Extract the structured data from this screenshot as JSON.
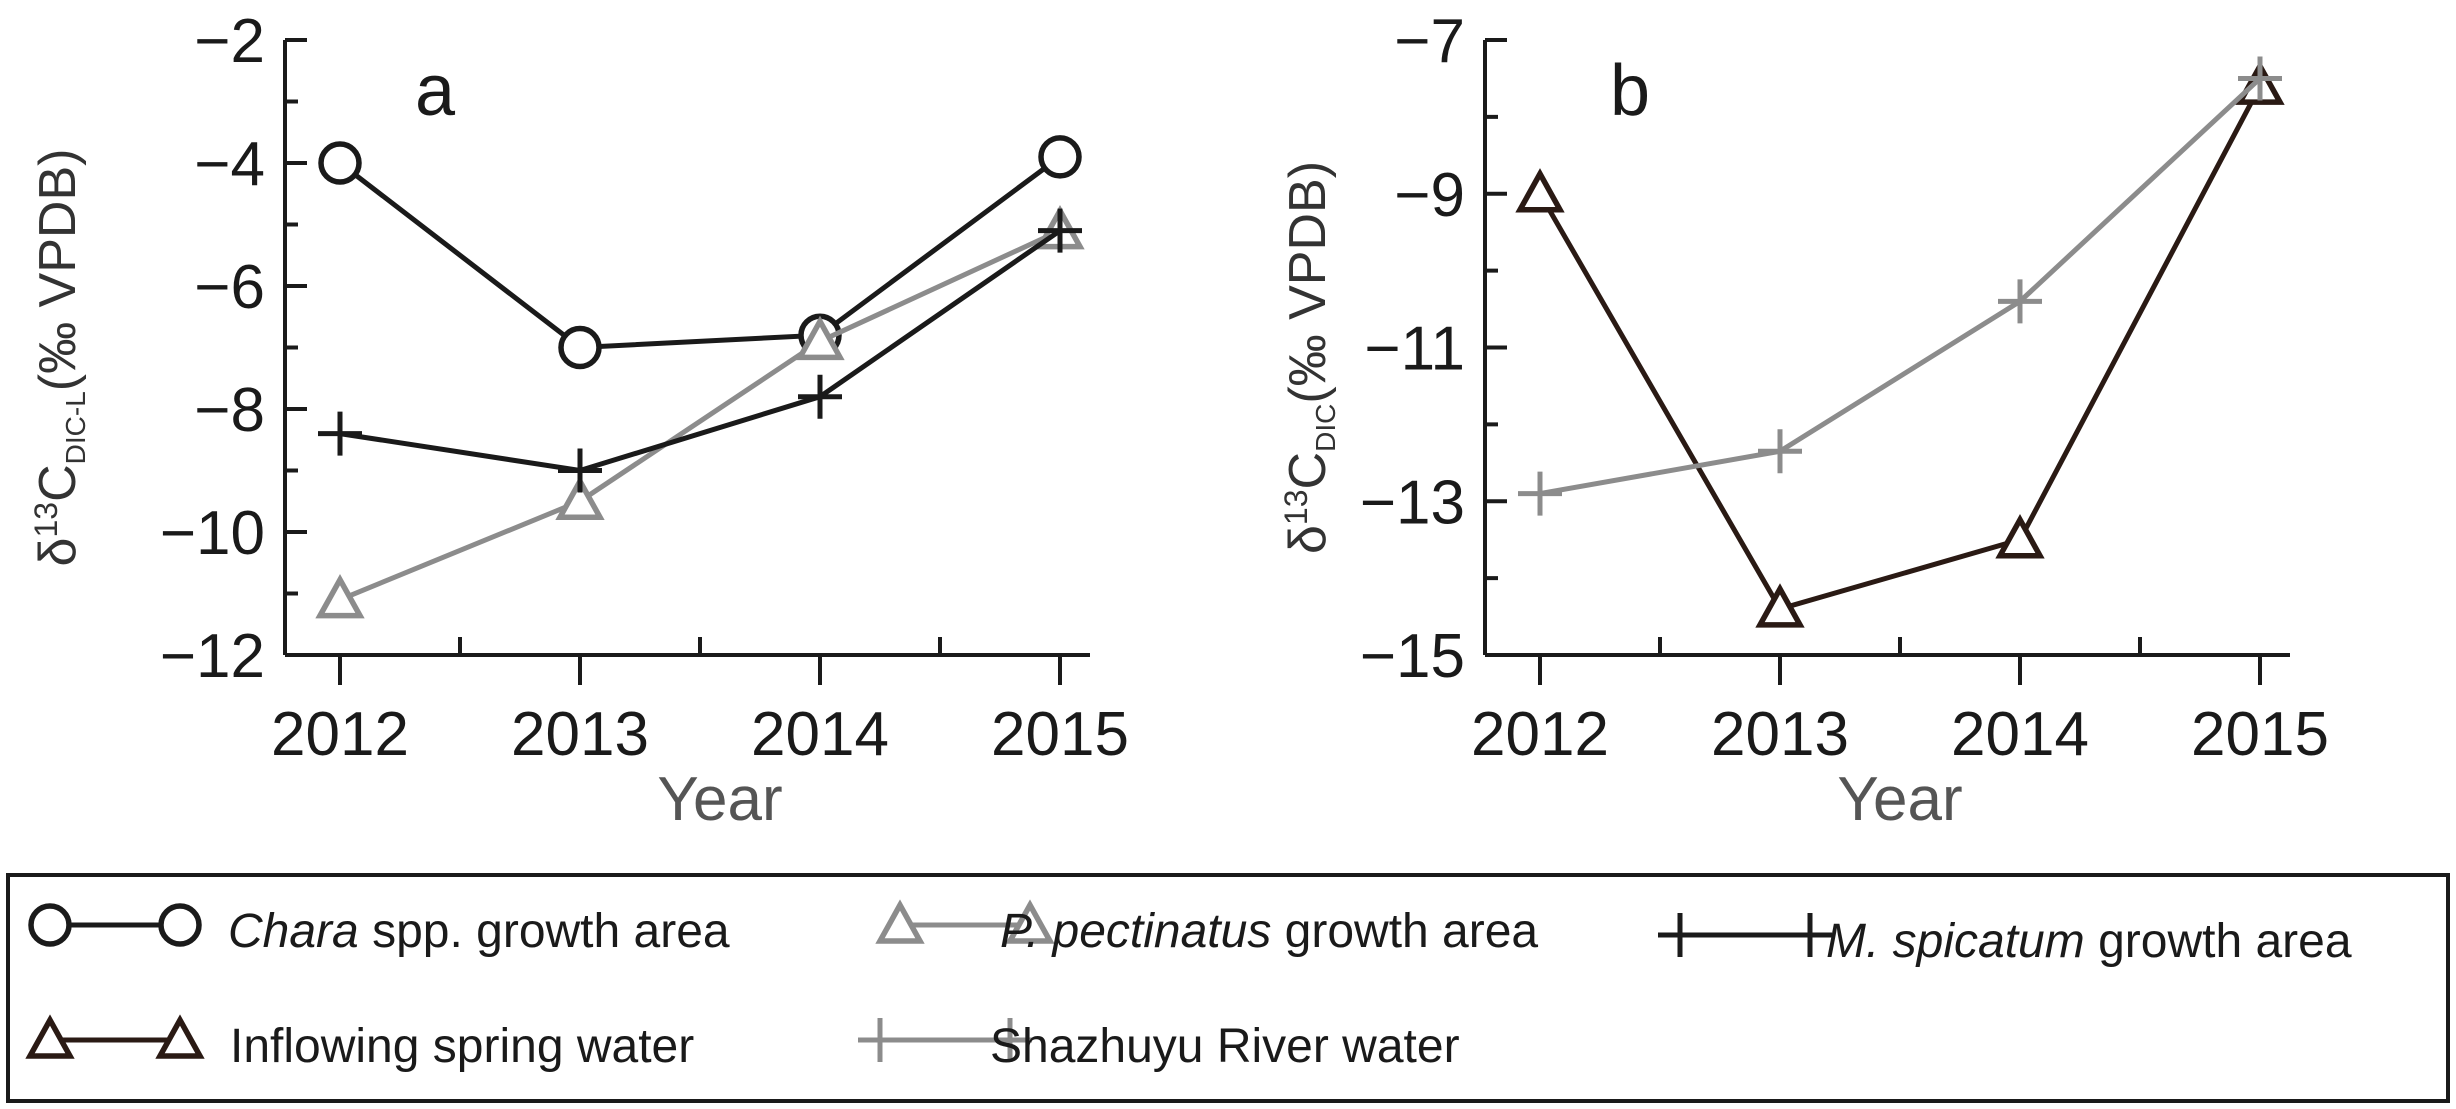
{
  "chart_data": [
    {
      "type": "line",
      "panel_label": "a",
      "x": [
        2012,
        2013,
        2014,
        2015
      ],
      "x_tick_labels": [
        "2012",
        "2013",
        "2014",
        "2015"
      ],
      "xlabel": "Year",
      "ylabel_prefix": "δ",
      "ylabel_sup": "13",
      "ylabel_main": "C",
      "ylabel_sub": "DIC-L",
      "ylabel_suffix": "(‰ VPDB)",
      "ylim": [
        -12,
        -2
      ],
      "y_ticks": [
        -12,
        -10,
        -8,
        -6,
        -4,
        -2
      ],
      "y_tick_labels": [
        "−12",
        "−10",
        "−8",
        "−6",
        "−4",
        "−2"
      ],
      "series": [
        {
          "name": "Chara spp. growth area",
          "marker": "circle",
          "color": "#1a1a1a",
          "values": [
            -4.0,
            -7.0,
            -6.8,
            -3.9
          ]
        },
        {
          "name": "P. pectinatus growth area",
          "marker": "triangle",
          "color": "#8c8c8c",
          "values": [
            -11.1,
            -9.5,
            -6.9,
            -5.1
          ]
        },
        {
          "name": "M. spicatum growth area",
          "marker": "plus",
          "color": "#1a1a1a",
          "values": [
            -8.4,
            -9.0,
            -7.8,
            -5.1
          ]
        }
      ]
    },
    {
      "type": "line",
      "panel_label": "b",
      "x": [
        2012,
        2013,
        2014,
        2015
      ],
      "x_tick_labels": [
        "2012",
        "2013",
        "2014",
        "2015"
      ],
      "xlabel": "Year",
      "ylabel_prefix": "δ",
      "ylabel_sup": "13",
      "ylabel_main": "C",
      "ylabel_sub": "DIC",
      "ylabel_suffix": "(‰ VPDB)",
      "ylim": [
        -15,
        -7
      ],
      "y_ticks": [
        -15,
        -13,
        -11,
        -9,
        -7
      ],
      "y_tick_labels": [
        "−15",
        "−13",
        "−11",
        "−9",
        "−7"
      ],
      "series": [
        {
          "name": "Inflowing spring water",
          "marker": "triangle",
          "color": "#2a1a14",
          "values": [
            -9.0,
            -14.4,
            -13.5,
            -7.6
          ]
        },
        {
          "name": "Shazhuyu River water",
          "marker": "plus",
          "color": "#8c8c8c",
          "values": [
            -12.9,
            -12.35,
            -10.4,
            -7.5
          ]
        }
      ]
    }
  ],
  "legend": {
    "entries": [
      {
        "marker": "circle",
        "color": "#1a1a1a",
        "italic": "Chara",
        "text": " spp. growth area"
      },
      {
        "marker": "triangle",
        "color": "#8c8c8c",
        "italic": "P. pectinatus",
        "text": " growth area"
      },
      {
        "marker": "plus",
        "color": "#1a1a1a",
        "italic": "M. spicatum",
        "text": " growth area"
      },
      {
        "marker": "triangle",
        "color": "#2a1a14",
        "italic": "",
        "text": "Inflowing spring water"
      },
      {
        "marker": "plus",
        "color": "#8c8c8c",
        "italic": "",
        "text": "Shazhuyu River  water"
      }
    ]
  }
}
